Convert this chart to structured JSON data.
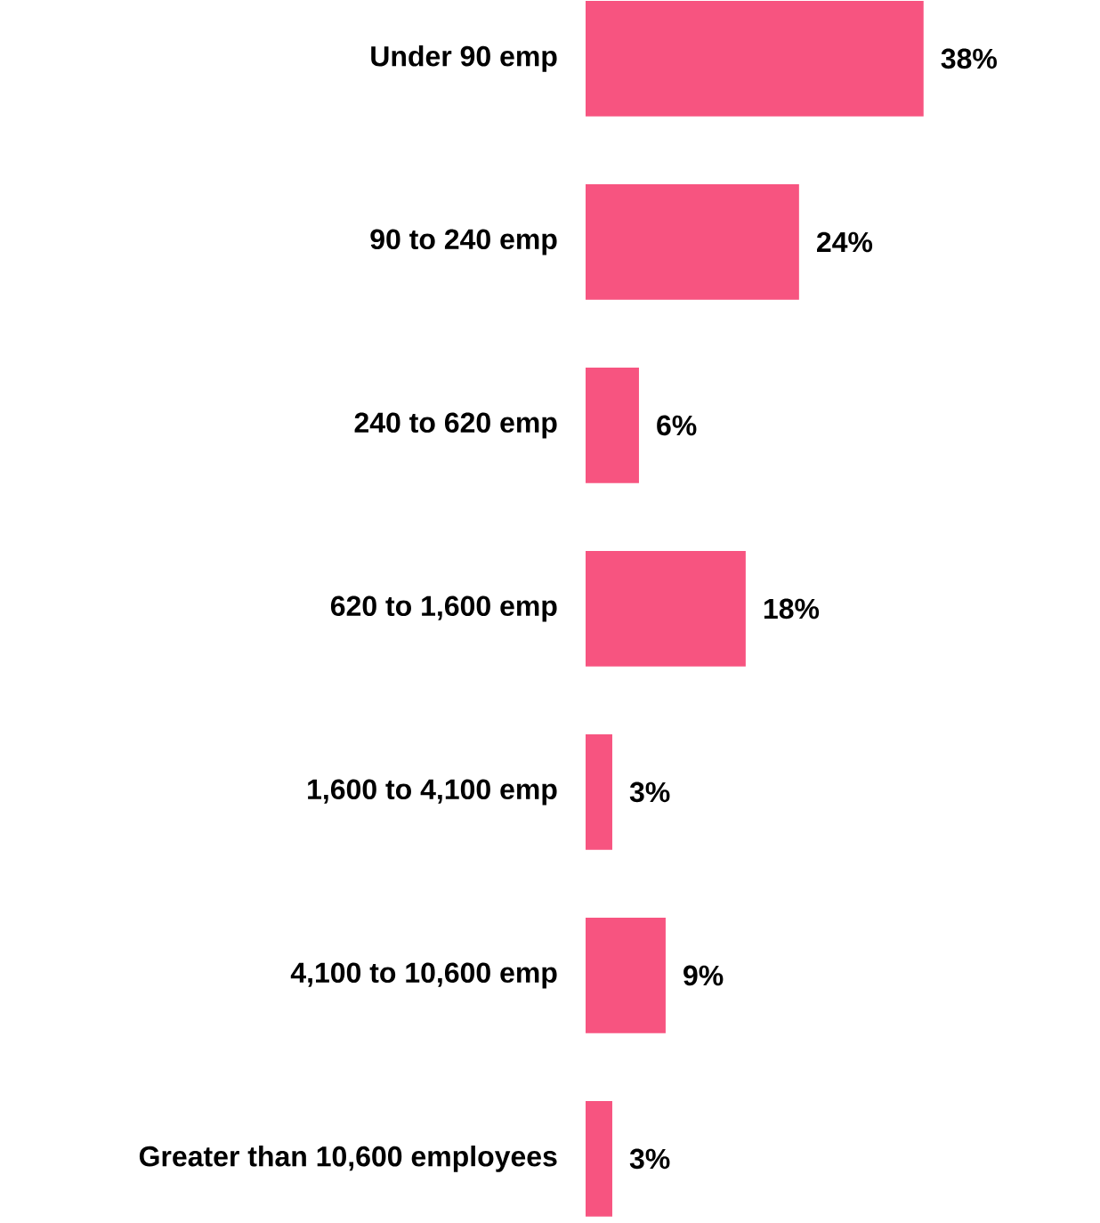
{
  "chart_data": {
    "type": "bar",
    "orientation": "horizontal",
    "categories": [
      "Under 90 emp",
      "90 to 240 emp",
      "240 to 620 emp",
      "620 to 1,600 emp",
      "1,600 to 4,100 emp",
      "4,100 to 10,600 emp",
      "Greater than 10,600 employees"
    ],
    "values": [
      38,
      24,
      6,
      18,
      3,
      9,
      3
    ],
    "color": "#f75480",
    "value_labels": [
      "38%",
      "24%",
      "6%",
      "18%",
      "3%",
      "9%",
      "3%"
    ]
  }
}
